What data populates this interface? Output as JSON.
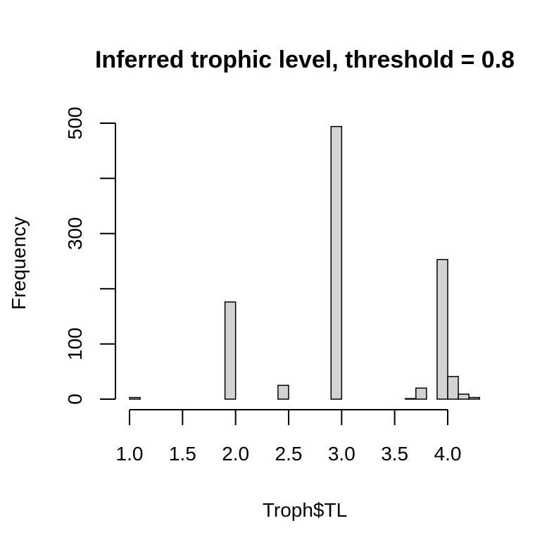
{
  "chart_data": {
    "type": "bar",
    "title": "Inferred trophic level, threshold = 0.8",
    "xlabel": "Troph$TL",
    "ylabel": "Frequency",
    "xlim": [
      1.0,
      4.3
    ],
    "ylim": [
      0,
      500
    ],
    "x_ticks": [
      "1.0",
      "1.5",
      "2.0",
      "2.5",
      "3.0",
      "3.5",
      "4.0"
    ],
    "y_ticks": [
      "0",
      "100",
      "300",
      "500"
    ],
    "bin_width": 0.1,
    "bins": [
      {
        "start": 1.0,
        "count": 3
      },
      {
        "start": 1.1,
        "count": 0
      },
      {
        "start": 1.2,
        "count": 0
      },
      {
        "start": 1.3,
        "count": 0
      },
      {
        "start": 1.4,
        "count": 0
      },
      {
        "start": 1.5,
        "count": 0
      },
      {
        "start": 1.6,
        "count": 0
      },
      {
        "start": 1.7,
        "count": 0
      },
      {
        "start": 1.8,
        "count": 0
      },
      {
        "start": 1.9,
        "count": 176
      },
      {
        "start": 2.0,
        "count": 0
      },
      {
        "start": 2.1,
        "count": 0
      },
      {
        "start": 2.2,
        "count": 0
      },
      {
        "start": 2.3,
        "count": 0
      },
      {
        "start": 2.4,
        "count": 25
      },
      {
        "start": 2.5,
        "count": 0
      },
      {
        "start": 2.6,
        "count": 0
      },
      {
        "start": 2.7,
        "count": 0
      },
      {
        "start": 2.8,
        "count": 0
      },
      {
        "start": 2.9,
        "count": 494
      },
      {
        "start": 3.0,
        "count": 0
      },
      {
        "start": 3.1,
        "count": 0
      },
      {
        "start": 3.2,
        "count": 0
      },
      {
        "start": 3.3,
        "count": 0
      },
      {
        "start": 3.4,
        "count": 0
      },
      {
        "start": 3.5,
        "count": 0
      },
      {
        "start": 3.6,
        "count": 1
      },
      {
        "start": 3.7,
        "count": 20
      },
      {
        "start": 3.8,
        "count": 0
      },
      {
        "start": 3.9,
        "count": 253
      },
      {
        "start": 4.0,
        "count": 41
      },
      {
        "start": 4.1,
        "count": 9
      },
      {
        "start": 4.2,
        "count": 3
      }
    ],
    "grid": false,
    "legend": "none"
  }
}
